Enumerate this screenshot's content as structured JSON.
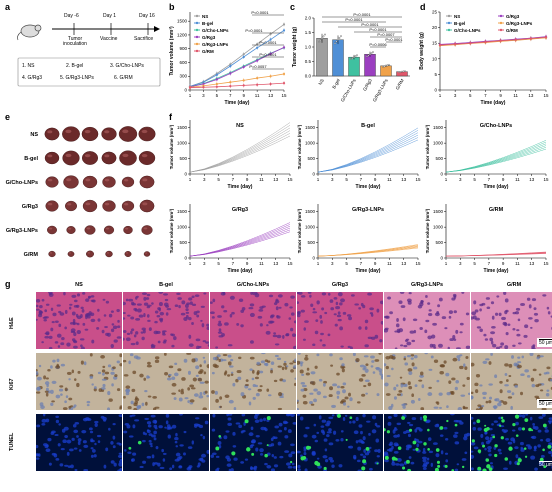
{
  "panels": {
    "a": "a",
    "b": "b",
    "c": "c",
    "d": "d",
    "e": "e",
    "f": "f",
    "g": "g"
  },
  "timeline": {
    "days": [
      "Day -6",
      "Day 1",
      "Day 16"
    ],
    "events": [
      "Tumor\ninoculation",
      "Vaccine",
      "Sacrifice"
    ],
    "groups": [
      "1. NS",
      "2. B-gel",
      "3. G/Cho-LNPs",
      "4. G/Rg3",
      "5. G/Rg3-LNPs",
      "6. G/RM"
    ]
  },
  "colors": {
    "NS": "#9e9e9e",
    "Bgel": "#4f8fd6",
    "GCho": "#3fc1a0",
    "GRg3": "#9b3fc0",
    "GRg3LNP": "#f0a24a",
    "GRM": "#e0576b"
  },
  "chart_data": [
    {
      "type": "line",
      "id": "b",
      "xlabel": "Time (day)",
      "ylabel": "Tumor volume (mm³)",
      "x": [
        1,
        3,
        5,
        7,
        9,
        11,
        13,
        15
      ],
      "xticks": [
        "1",
        "3",
        "5",
        "7",
        "9",
        "11",
        "13",
        "15"
      ],
      "yticks": [
        "0",
        "300",
        "600",
        "900",
        "1200",
        "1500"
      ],
      "ylim": [
        0,
        1700
      ],
      "series": [
        {
          "name": "NS",
          "color": "#9e9e9e",
          "values": [
            80,
            180,
            360,
            560,
            780,
            1000,
            1220,
            1430
          ]
        },
        {
          "name": "B-gel",
          "color": "#4f8fd6",
          "values": [
            80,
            170,
            330,
            520,
            720,
            920,
            1100,
            1300
          ]
        },
        {
          "name": "G/Cho-LNPs",
          "color": "#3fc1a0",
          "values": [
            70,
            140,
            250,
            380,
            520,
            660,
            800,
            920
          ]
        },
        {
          "name": "G/Rg3",
          "color": "#9b3fc0",
          "values": [
            70,
            130,
            230,
            360,
            500,
            640,
            790,
            930
          ]
        },
        {
          "name": "G/Rg3-LNPs",
          "color": "#f0a24a",
          "values": [
            60,
            90,
            130,
            170,
            210,
            260,
            300,
            350
          ]
        },
        {
          "name": "G/RM",
          "color": "#e0576b",
          "values": [
            50,
            60,
            70,
            85,
            100,
            115,
            130,
            150
          ]
        }
      ],
      "annotations": [
        "P<0.0001",
        "P=0.0001",
        "P<0.0001",
        "P<0.0001",
        "P=0.0057"
      ]
    },
    {
      "type": "bar",
      "id": "c",
      "ylabel": "Tumor weight (g)",
      "categories": [
        "NS",
        "B-gel",
        "G/Cho-LNPs",
        "G/Rg3",
        "G/Rg3-LNPs",
        "G/RM"
      ],
      "values": [
        1.3,
        1.25,
        0.65,
        0.75,
        0.35,
        0.15
      ],
      "ylim": [
        0,
        2.0
      ],
      "yticks": [
        "0.0",
        "0.5",
        "1.0",
        "1.5",
        "2.0"
      ],
      "annotations": [
        "P<0.0001",
        "P<0.0001",
        "P<0.0001",
        "P<0.0001",
        "P=0.0007",
        "P<0.0001",
        "P=0.0006"
      ]
    },
    {
      "type": "line",
      "id": "d",
      "xlabel": "Time (day)",
      "ylabel": "Body weight (g)",
      "x": [
        1,
        3,
        5,
        7,
        9,
        11,
        13,
        15
      ],
      "xticks": [
        "1",
        "3",
        "5",
        "7",
        "9",
        "11",
        "13",
        "15"
      ],
      "yticks": [
        "0",
        "5",
        "10",
        "15",
        "20",
        "25"
      ],
      "ylim": [
        0,
        25
      ],
      "series": [
        {
          "name": "NS",
          "color": "#9e9e9e",
          "values": [
            14.5,
            14.8,
            15.2,
            15.5,
            15.9,
            16.2,
            16.6,
            17.0
          ]
        },
        {
          "name": "B-gel",
          "color": "#4f8fd6",
          "values": [
            14.3,
            14.6,
            15.0,
            15.4,
            15.7,
            16.0,
            16.4,
            16.8
          ]
        },
        {
          "name": "G/Cho-LNPs",
          "color": "#3fc1a0",
          "values": [
            14.4,
            14.7,
            15.1,
            15.3,
            15.8,
            16.1,
            16.5,
            16.9
          ]
        },
        {
          "name": "G/Rg3",
          "color": "#9b3fc0",
          "values": [
            14.6,
            14.9,
            15.2,
            15.6,
            15.9,
            16.3,
            16.6,
            17.1
          ]
        },
        {
          "name": "G/Rg3-LNPs",
          "color": "#f0a24a",
          "values": [
            14.2,
            14.5,
            14.9,
            15.2,
            15.6,
            15.9,
            16.3,
            16.7
          ]
        },
        {
          "name": "G/RM",
          "color": "#e0576b",
          "values": [
            14.4,
            14.7,
            15.0,
            15.4,
            15.8,
            16.1,
            16.5,
            16.9
          ]
        }
      ]
    }
  ],
  "individual": {
    "xlabel": "Time (day)",
    "ylabel": "Tumor volume (mm³)",
    "xticks": [
      "1",
      "3",
      "5",
      "7",
      "9",
      "11",
      "13",
      "15"
    ],
    "yticks": [
      "0",
      "500",
      "1000",
      "1500"
    ],
    "charts": [
      {
        "title": "NS",
        "color": "#9e9e9e",
        "final": 1450
      },
      {
        "title": "B-gel",
        "color": "#4f8fd6",
        "final": 1300
      },
      {
        "title": "G/Cho-LNPs",
        "color": "#3fc1a0",
        "final": 950
      },
      {
        "title": "G/Rg3",
        "color": "#9b3fc0",
        "final": 1000
      },
      {
        "title": "G/Rg3-LNPs",
        "color": "#f0a24a",
        "final": 380
      },
      {
        "title": "G/RM",
        "color": "#e0576b",
        "final": 170
      }
    ]
  },
  "tumors": {
    "rows": [
      "NS",
      "B-gel",
      "G/Cho-LNPs",
      "G/Rg3",
      "G/Rg3-LNPs",
      "G/RM"
    ]
  },
  "histology": {
    "columns": [
      "NS",
      "B-gel",
      "G/Cho-LNPs",
      "G/Rg3",
      "G/Rg3-LNPs",
      "G/RM"
    ],
    "rows": [
      "H&E",
      "Ki67",
      "TUNEL"
    ],
    "scale": "50 μm"
  }
}
